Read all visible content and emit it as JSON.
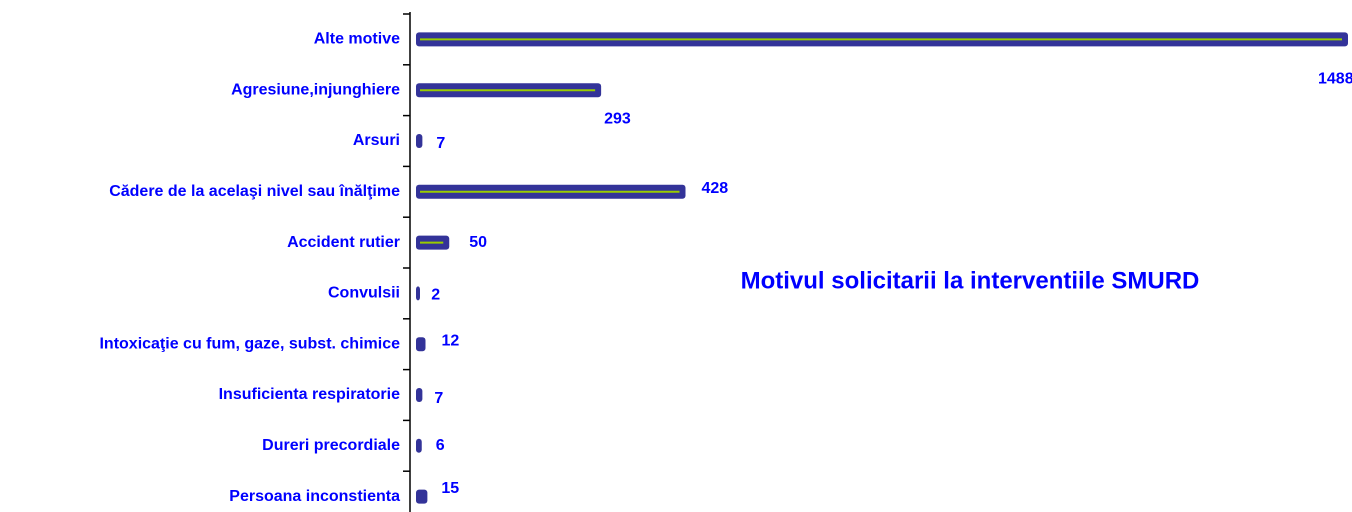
{
  "chart_data": {
    "type": "bar",
    "orientation": "horizontal",
    "title": "Motivul solicitarii la interventiile SMURD",
    "categories": [
      "Alte motive",
      "Agresiune,injunghiere",
      "Arsuri",
      "Cădere de la acelaşi nivel sau înălţime",
      "Accident rutier",
      "Convulsii",
      "Intoxicaţie cu fum, gaze, subst. chimice",
      "Insuficienta respiratorie",
      "Dureri precordiale",
      "Persoana inconstienta"
    ],
    "values": [
      1488,
      293,
      7,
      428,
      50,
      2,
      12,
      7,
      6,
      15
    ],
    "color": "#333399",
    "line_color": "#99cc00"
  }
}
